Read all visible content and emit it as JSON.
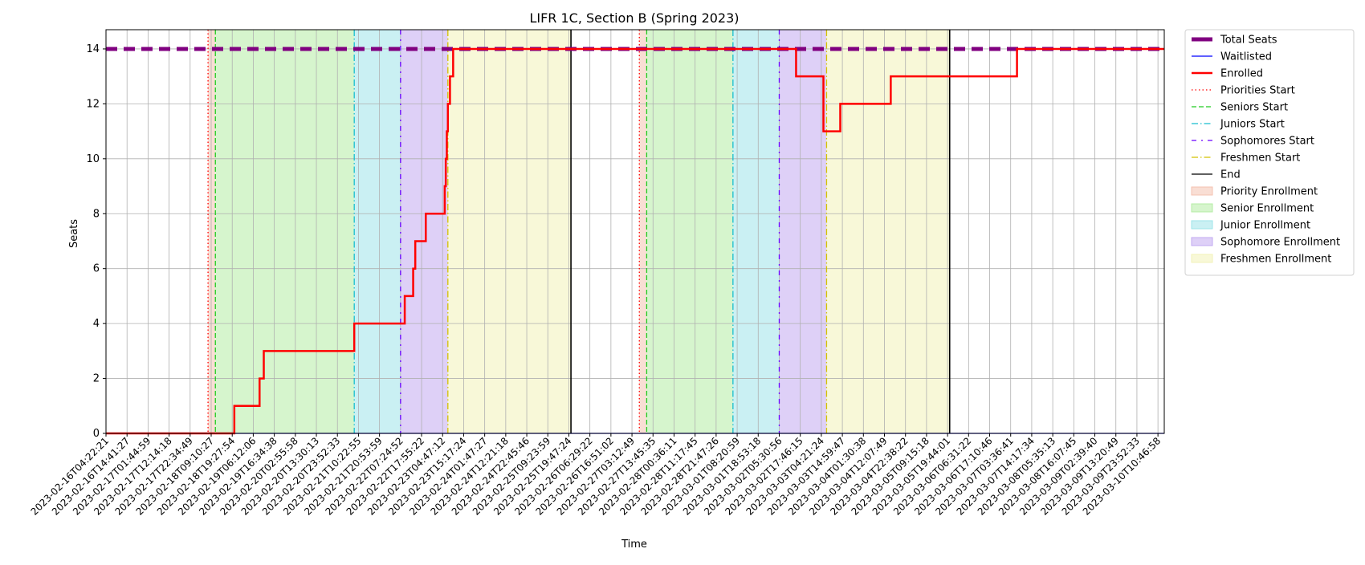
{
  "chart_data": {
    "type": "line",
    "title": "LIFR 1C, Section B (Spring 2023)",
    "xlabel": "Time",
    "ylabel": "Seats",
    "ylim": [
      0,
      14.7
    ],
    "yticks": [
      0,
      2,
      4,
      6,
      8,
      10,
      12,
      14
    ],
    "grid": true,
    "legend_position": "outside-right",
    "xtick_labels": [
      "2023-02-16T04:22:21",
      "2023-02-16T14:41:27",
      "2023-02-17T01:44:59",
      "2023-02-17T12:14:18",
      "2023-02-17T22:34:49",
      "2023-02-18T09:10:27",
      "2023-02-18T19:27:54",
      "2023-02-19T06:12:06",
      "2023-02-19T16:34:38",
      "2023-02-20T02:55:58",
      "2023-02-20T13:30:13",
      "2023-02-20T23:52:33",
      "2023-02-21T10:22:55",
      "2023-02-21T20:53:59",
      "2023-02-22T07:24:52",
      "2023-02-22T17:55:22",
      "2023-02-23T04:47:12",
      "2023-02-23T15:17:24",
      "2023-02-24T01:47:27",
      "2023-02-24T12:21:18",
      "2023-02-24T22:45:46",
      "2023-02-25T09:23:59",
      "2023-02-25T19:47:24",
      "2023-02-26T06:29:22",
      "2023-02-26T16:51:02",
      "2023-02-27T03:12:49",
      "2023-02-27T13:45:35",
      "2023-02-28T00:36:11",
      "2023-02-28T11:17:45",
      "2023-02-28T21:47:26",
      "2023-03-01T08:20:59",
      "2023-03-01T18:53:18",
      "2023-03-02T05:30:56",
      "2023-03-02T17:46:15",
      "2023-03-03T04:21:24",
      "2023-03-03T14:59:47",
      "2023-03-04T01:30:38",
      "2023-03-04T12:07:49",
      "2023-03-04T22:38:22",
      "2023-03-05T09:15:18",
      "2023-03-05T19:44:01",
      "2023-03-06T06:31:22",
      "2023-03-06T17:10:46",
      "2023-03-07T03:36:41",
      "2023-03-07T14:17:34",
      "2023-03-08T05:35:13",
      "2023-03-08T16:07:45",
      "2023-03-09T02:39:40",
      "2023-03-09T13:20:49",
      "2023-03-09T23:52:33",
      "2023-03-10T10:46:58"
    ],
    "series": [
      {
        "name": "Total Seats",
        "color": "#800080",
        "style": "thick-dashed",
        "points": [
          [
            0,
            14
          ],
          [
            50.3,
            14
          ]
        ]
      },
      {
        "name": "Waitlisted",
        "color": "#0000ff",
        "style": "solid",
        "points": [
          [
            0,
            0
          ],
          [
            50.3,
            0
          ]
        ]
      },
      {
        "name": "Enrolled",
        "color": "#ff0000",
        "style": "step",
        "points": [
          [
            0,
            0
          ],
          [
            6.1,
            0
          ],
          [
            6.1,
            1
          ],
          [
            7.3,
            1
          ],
          [
            7.3,
            2
          ],
          [
            7.5,
            2
          ],
          [
            7.5,
            3
          ],
          [
            11.8,
            3
          ],
          [
            11.8,
            4
          ],
          [
            14.2,
            4
          ],
          [
            14.2,
            5
          ],
          [
            14.6,
            5
          ],
          [
            14.6,
            6
          ],
          [
            14.7,
            6
          ],
          [
            14.7,
            7
          ],
          [
            15.2,
            7
          ],
          [
            15.2,
            8
          ],
          [
            16.1,
            8
          ],
          [
            16.1,
            9
          ],
          [
            16.15,
            9
          ],
          [
            16.15,
            10
          ],
          [
            16.2,
            10
          ],
          [
            16.2,
            11
          ],
          [
            16.25,
            11
          ],
          [
            16.25,
            12
          ],
          [
            16.35,
            12
          ],
          [
            16.35,
            13
          ],
          [
            16.5,
            13
          ],
          [
            16.5,
            14
          ],
          [
            32.8,
            14
          ],
          [
            32.8,
            13
          ],
          [
            34.1,
            13
          ],
          [
            34.1,
            11
          ],
          [
            34.9,
            11
          ],
          [
            34.9,
            12
          ],
          [
            37.3,
            12
          ],
          [
            37.3,
            13
          ],
          [
            43.3,
            13
          ],
          [
            43.3,
            14
          ],
          [
            50.3,
            14
          ]
        ]
      }
    ],
    "markers": [
      {
        "name": "Priorities Start",
        "color": "#ff0000",
        "style": "dotted",
        "x": [
          4.85,
          25.35
        ]
      },
      {
        "name": "Seniors Start",
        "color": "#22cc22",
        "style": "dashed",
        "x": [
          5.2,
          25.7
        ]
      },
      {
        "name": "Juniors Start",
        "color": "#17becf",
        "style": "dashdot",
        "x": [
          11.8,
          29.8
        ]
      },
      {
        "name": "Sophomores Start",
        "color": "#6a00ff",
        "style": "dashdot-sparse",
        "x": [
          14.0,
          32.0
        ]
      },
      {
        "name": "Freshmen Start",
        "color": "#d4c200",
        "style": "dashdot",
        "x": [
          16.25,
          34.25
        ]
      },
      {
        "name": "End",
        "color": "#000000",
        "style": "solid",
        "x": [
          22.1,
          40.1
        ]
      }
    ],
    "regions": [
      {
        "name": "Priority Enrollment",
        "color": "#f4c2b0",
        "spans": [
          [
            4.85,
            5.2
          ],
          [
            25.35,
            25.7
          ]
        ]
      },
      {
        "name": "Senior Enrollment",
        "color": "#b4eca4",
        "spans": [
          [
            5.2,
            11.8
          ],
          [
            25.7,
            29.8
          ]
        ]
      },
      {
        "name": "Junior Enrollment",
        "color": "#9ee4ea",
        "spans": [
          [
            11.8,
            14.0
          ],
          [
            29.8,
            32.0
          ]
        ]
      },
      {
        "name": "Sophomore Enrollment",
        "color": "#c2aaf0",
        "spans": [
          [
            14.0,
            16.25
          ],
          [
            32.0,
            34.25
          ]
        ]
      },
      {
        "name": "Freshmen Enrollment",
        "color": "#f2f2b8",
        "spans": [
          [
            16.25,
            22.1
          ],
          [
            34.25,
            40.1
          ]
        ]
      }
    ],
    "legend": [
      {
        "label": "Total Seats",
        "kind": "line",
        "color": "#800080",
        "style": "thick-dashed"
      },
      {
        "label": "Waitlisted",
        "kind": "line",
        "color": "#0000ff",
        "style": "solid"
      },
      {
        "label": "Enrolled",
        "kind": "line",
        "color": "#ff0000",
        "style": "solid"
      },
      {
        "label": "Priorities Start",
        "kind": "line",
        "color": "#ff0000",
        "style": "dotted"
      },
      {
        "label": "Seniors Start",
        "kind": "line",
        "color": "#22cc22",
        "style": "dashed"
      },
      {
        "label": "Juniors Start",
        "kind": "line",
        "color": "#17becf",
        "style": "dashdot"
      },
      {
        "label": "Sophomores Start",
        "kind": "line",
        "color": "#6a00ff",
        "style": "dashdot-sparse"
      },
      {
        "label": "Freshmen Start",
        "kind": "line",
        "color": "#d4c200",
        "style": "dashdot"
      },
      {
        "label": "End",
        "kind": "line",
        "color": "#000000",
        "style": "solid"
      },
      {
        "label": "Priority Enrollment",
        "kind": "patch",
        "color": "#f4c2b0"
      },
      {
        "label": "Senior Enrollment",
        "kind": "patch",
        "color": "#b4eca4"
      },
      {
        "label": "Junior Enrollment",
        "kind": "patch",
        "color": "#9ee4ea"
      },
      {
        "label": "Sophomore Enrollment",
        "kind": "patch",
        "color": "#c2aaf0"
      },
      {
        "label": "Freshmen Enrollment",
        "kind": "patch",
        "color": "#f2f2b8"
      }
    ]
  }
}
